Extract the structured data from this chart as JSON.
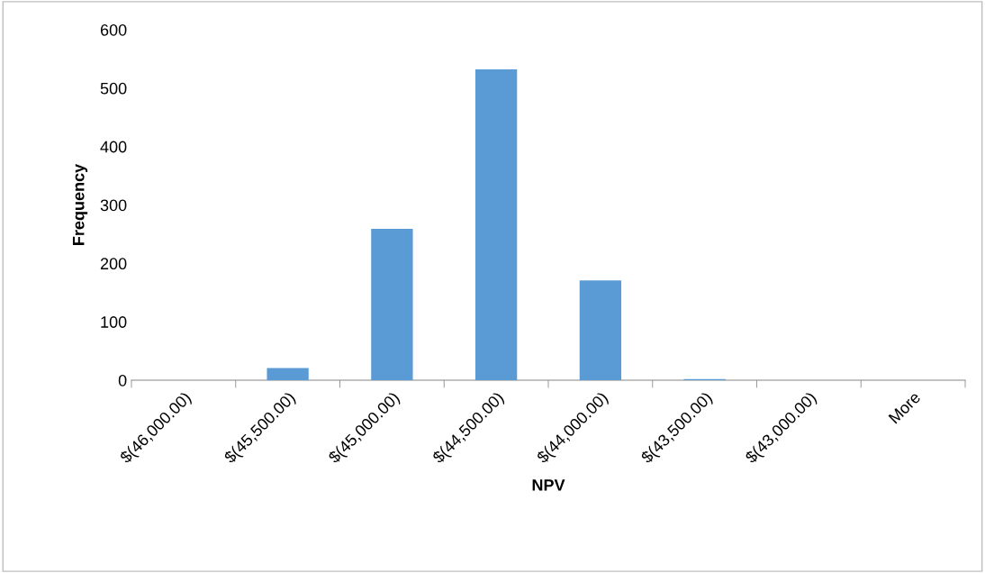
{
  "chart_data": {
    "type": "bar",
    "xlabel": "NPV",
    "ylabel": "Frequency",
    "categories": [
      "$(46,000.00)",
      "$(45,500.00)",
      "$(45,000.00)",
      "$(44,500.00)",
      "$(44,000.00)",
      "$(43,500.00)",
      "$(43,000.00)",
      "More"
    ],
    "values": [
      0,
      21,
      259,
      532,
      171,
      2,
      0,
      0
    ],
    "color": "#5b9bd5",
    "ylim": [
      0,
      600
    ],
    "yticks": [
      0,
      100,
      200,
      300,
      400,
      500,
      600
    ],
    "grid": false,
    "legend": false
  }
}
